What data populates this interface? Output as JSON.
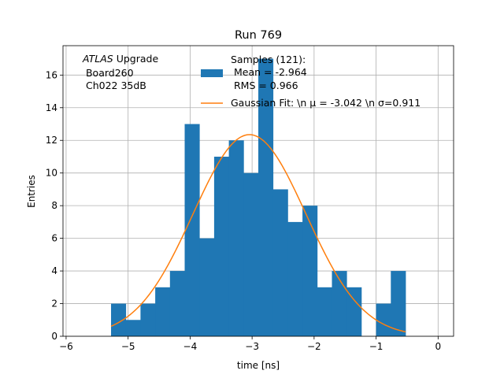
{
  "chart_data": {
    "type": "bar",
    "title": "Run 769",
    "xlabel": "time [ns]",
    "ylabel": "Entries",
    "xlim": [
      -6.05,
      0.25
    ],
    "ylim": [
      0,
      17.8
    ],
    "grid": true,
    "legend_position": "top-right",
    "xticks": [
      -6,
      -5,
      -4,
      -3,
      -2,
      -1,
      0
    ],
    "xtick_labels": [
      "−6",
      "−5",
      "−4",
      "−3",
      "−2",
      "−1",
      "0"
    ],
    "yticks": [
      0,
      2,
      4,
      6,
      8,
      10,
      12,
      14,
      16
    ],
    "ytick_labels": [
      "0",
      "2",
      "4",
      "6",
      "8",
      "10",
      "12",
      "14",
      "16"
    ],
    "annotation": {
      "line1_italic": "ATLAS",
      "line1_rest": " Upgrade",
      "line2": " Board260",
      "line3": " Ch022 35dB"
    },
    "histogram": {
      "name_lines": [
        "Samples (121):",
        " Mean = -2.964",
        " RMS = 0.966"
      ],
      "color": "#1f77b4",
      "bin_width": 0.2375,
      "bin_start": -5.275,
      "counts": [
        2,
        1,
        2,
        3,
        4,
        13,
        6,
        11,
        12,
        10,
        17,
        9,
        7,
        8,
        3,
        4,
        3,
        0,
        2,
        4
      ]
    },
    "fit": {
      "name": "Gaussian Fit: \\n μ = -3.042 \\n σ=0.911",
      "color": "#ff7f0e",
      "mu": -3.042,
      "sigma": 0.911,
      "amplitude": 12.35,
      "x_range": [
        -5.275,
        -0.525
      ]
    }
  }
}
